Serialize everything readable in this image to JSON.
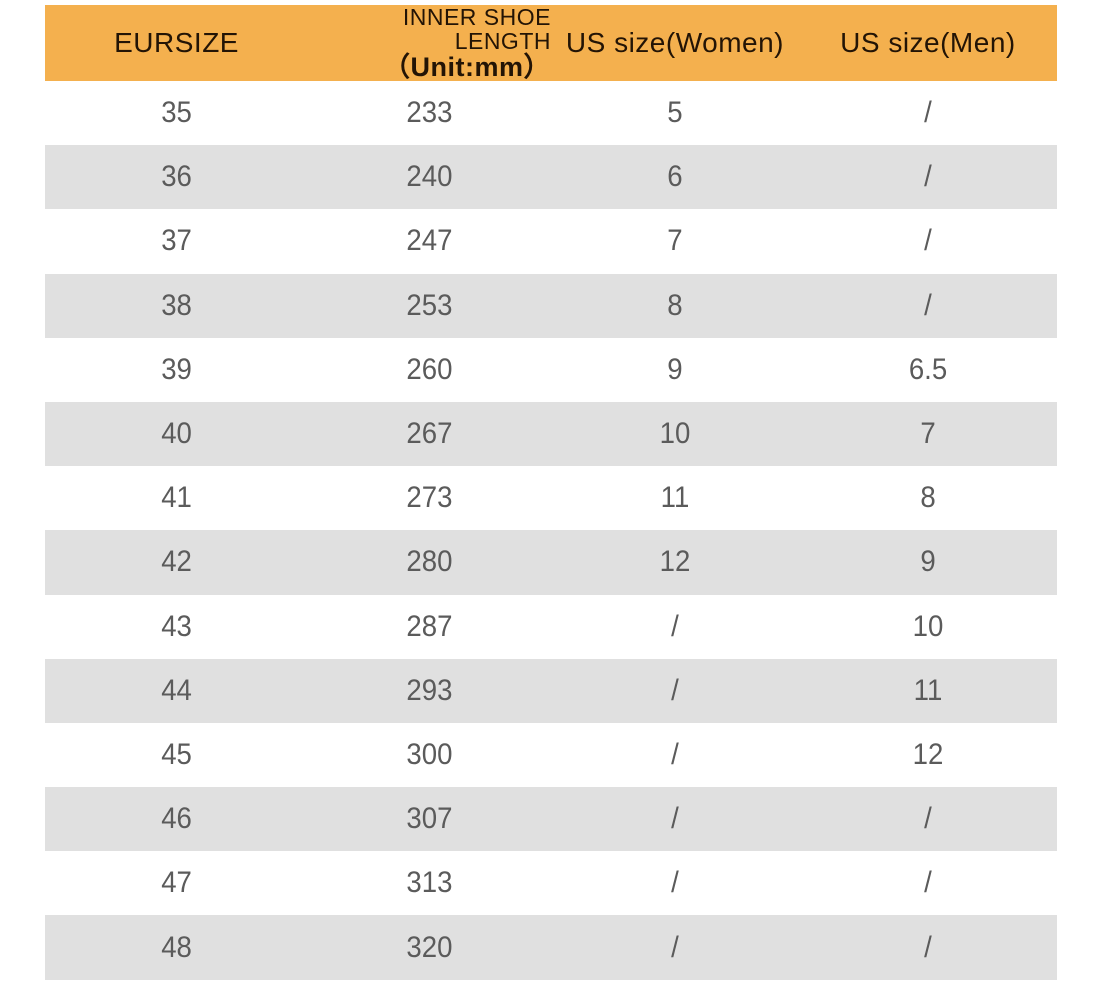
{
  "title": "Shoe size conversion chart",
  "colors": {
    "header_bg": "#F4B04E",
    "header_text": "#231405",
    "row_bg": "#FFFFFF",
    "row_alt_bg": "#E0E0E0",
    "cell_text": "#5B5B5B"
  },
  "table": {
    "header": {
      "eursize": "EURSIZE",
      "inner_length_line1": "INNER SHOE LENGTH",
      "inner_length_line2": "（Unit:mm）",
      "us_women": "US size(Women)",
      "us_men": "US size(Men)"
    }
  },
  "chart_data": {
    "type": "table",
    "columns": [
      "EURSIZE",
      "INNER SHOE LENGTH（Unit:mm）",
      "US size(Women)",
      "US size(Men)"
    ],
    "rows": [
      [
        "35",
        "233",
        "5",
        "/"
      ],
      [
        "36",
        "240",
        "6",
        "/"
      ],
      [
        "37",
        "247",
        "7",
        "/"
      ],
      [
        "38",
        "253",
        "8",
        "/"
      ],
      [
        "39",
        "260",
        "9",
        "6.5"
      ],
      [
        "40",
        "267",
        "10",
        "7"
      ],
      [
        "41",
        "273",
        "11",
        "8"
      ],
      [
        "42",
        "280",
        "12",
        "9"
      ],
      [
        "43",
        "287",
        "/",
        "10"
      ],
      [
        "44",
        "293",
        "/",
        "11"
      ],
      [
        "45",
        "300",
        "/",
        "12"
      ],
      [
        "46",
        "307",
        "/",
        "/"
      ],
      [
        "47",
        "313",
        "/",
        "/"
      ],
      [
        "48",
        "320",
        "/",
        "/"
      ]
    ]
  }
}
